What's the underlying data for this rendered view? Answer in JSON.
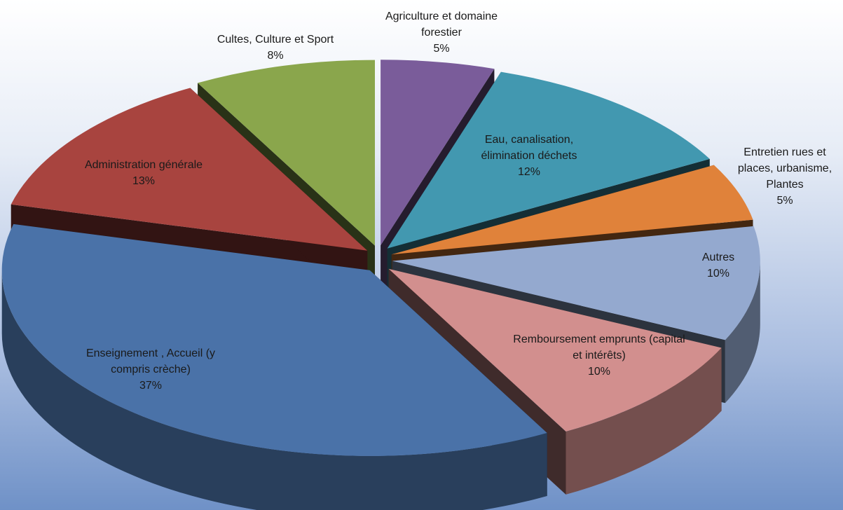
{
  "chart_data": {
    "type": "pie",
    "categories": [
      "Agriculture et domaine forestier",
      "Eau, canalisation, élimination déchets",
      "Entretien rues et places, urbanisme, Plantes",
      "Autres",
      "Remboursement emprunts (capital et intérêts)",
      "Enseignement , Accueil (y compris crèche)",
      "Administration générale",
      "Cultes, Culture et Sport"
    ],
    "values": [
      5,
      12,
      5,
      10,
      10,
      37,
      13,
      8
    ],
    "value_labels": [
      "5%",
      "12%",
      "5%",
      "10%",
      "10%",
      "37%",
      "13%",
      "8%"
    ],
    "colors": [
      "#7a5c9a",
      "#4298b0",
      "#e0823a",
      "#94a9cf",
      "#d28f8e",
      "#4a72a8",
      "#a8443f",
      "#8aa64c"
    ]
  }
}
